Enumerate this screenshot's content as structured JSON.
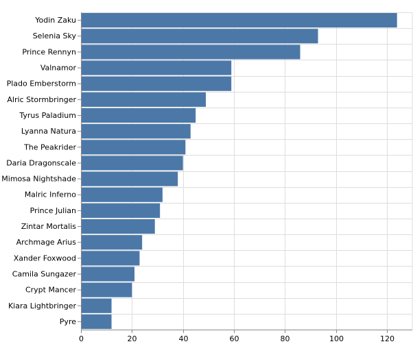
{
  "chart_data": {
    "type": "bar",
    "orientation": "horizontal",
    "categories": [
      "Yodin Zaku",
      "Selenia Sky",
      "Prince Rennyn",
      "Valnamor",
      "Plado Emberstorm",
      "Alric Stormbringer",
      "Tyrus Paladium",
      "Lyanna Natura",
      "The Peakrider",
      "Daria Dragonscale",
      "Mimosa Nightshade",
      "Malric Inferno",
      "Prince Julian",
      "Zintar Mortalis",
      "Archmage Arius",
      "Xander Foxwood",
      "Camila Sungazer",
      "Crypt Mancer",
      "Kiara Lightbringer",
      "Pyre"
    ],
    "values": [
      124,
      93,
      86,
      59,
      59,
      49,
      45,
      43,
      41,
      40,
      38,
      32,
      31,
      29,
      24,
      23,
      21,
      20,
      12,
      12
    ],
    "title": "",
    "xlabel": "",
    "ylabel": "",
    "xlim": [
      0,
      130
    ],
    "x_ticks": [
      "0",
      "20",
      "40",
      "60",
      "80",
      "100",
      "120"
    ],
    "grid": true,
    "legend": "none",
    "colors": {
      "bar": "#4c78a8",
      "grid": "#dddddd",
      "axis": "#888888"
    }
  }
}
